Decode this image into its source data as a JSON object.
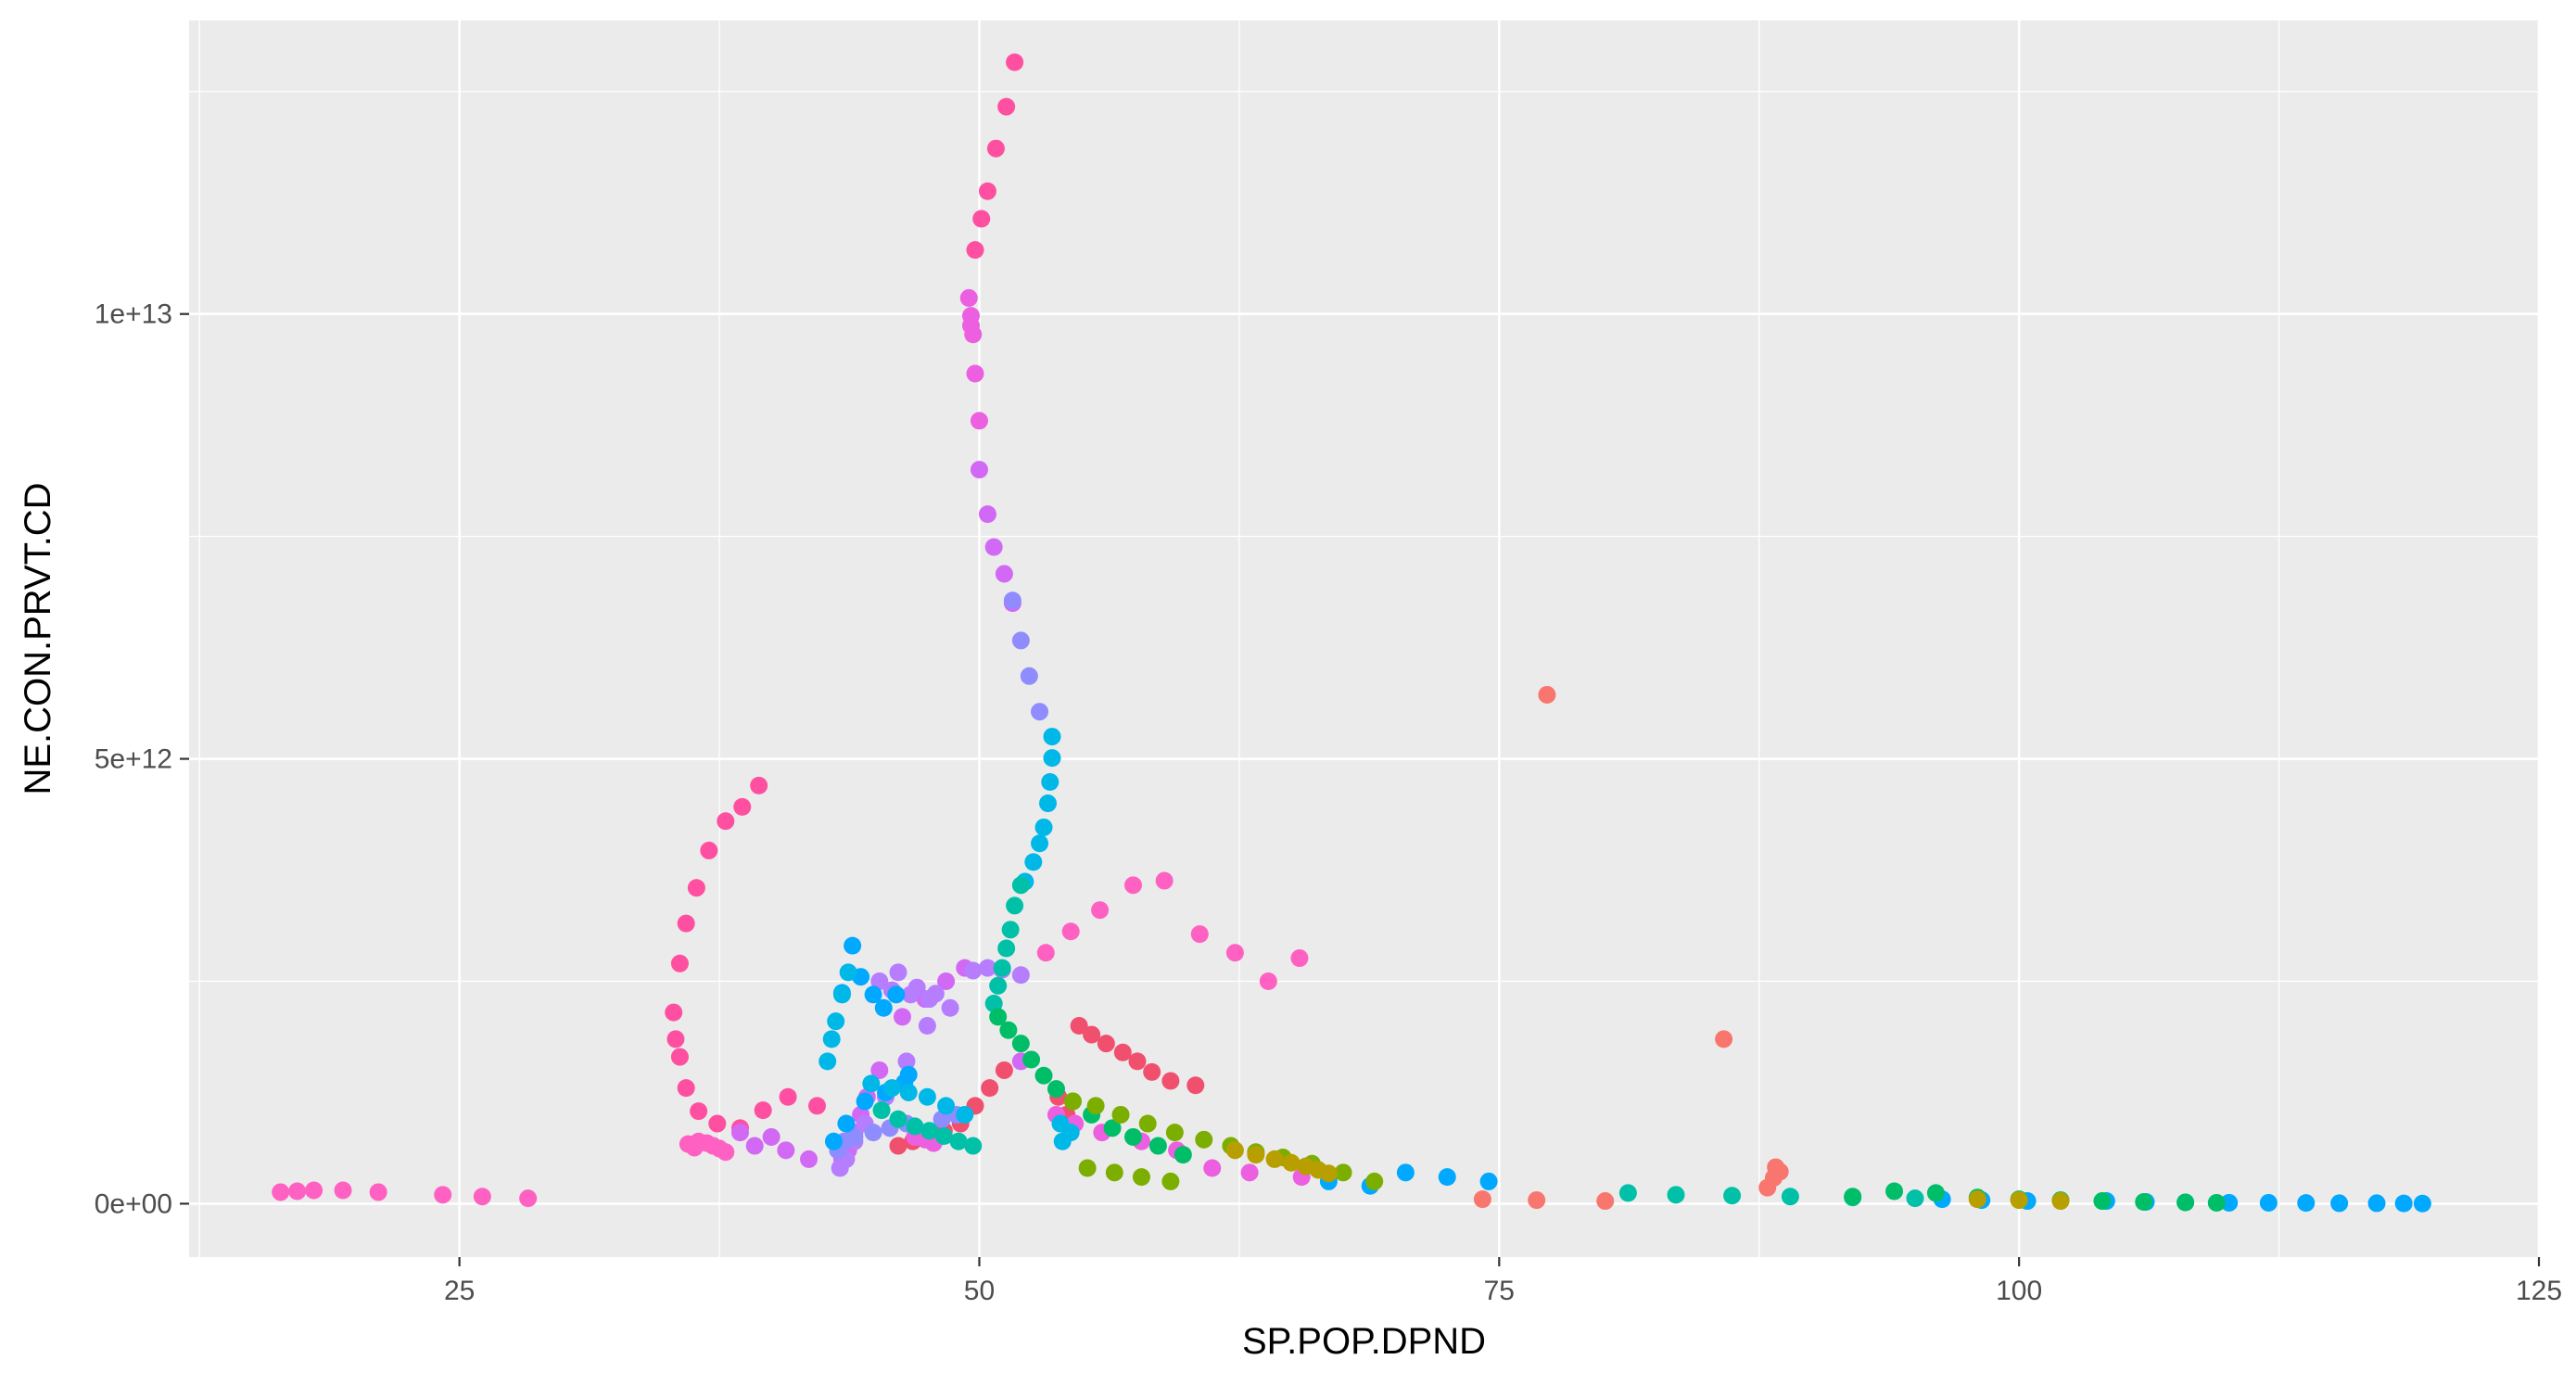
{
  "chart_data": {
    "type": "scatter",
    "title": "",
    "xlabel": "SP.POP.DPND",
    "ylabel": "NE.CON.PRVT.CD",
    "xlim": [
      12,
      125
    ],
    "ylim": [
      -600000000000.0,
      13300000000000.0
    ],
    "x_ticks": [
      25,
      50,
      75,
      100,
      125
    ],
    "x_tick_labels": [
      "25",
      "50",
      "75",
      "100",
      "125"
    ],
    "y_ticks": [
      0,
      5000000000000.0,
      10000000000000.0
    ],
    "y_tick_labels": [
      "0e+00",
      "5e+12",
      "1e+13"
    ],
    "grid": true,
    "legend": "none",
    "colors": [
      "#F8766D",
      "#F0506E",
      "#FF4FA0",
      "#FF61C3",
      "#EC5FE0",
      "#D269F5",
      "#B67DFF",
      "#8E8CFF",
      "#00A9FF",
      "#00B8E7",
      "#00C1A8",
      "#00BE67",
      "#7CAE00",
      "#B79F00"
    ],
    "series": [
      {
        "name": "",
        "color": "#F8766D",
        "x": [
          77.3,
          85.8,
          88.3,
          88.5,
          88.2,
          87.9,
          74.2,
          76.8,
          80.1
        ],
        "y": [
          5720000000000.0,
          1850000000000.0,
          410000000000.0,
          360000000000.0,
          290000000000.0,
          180000000000.0,
          50000000000.0,
          40000000000.0,
          30000000000.0
        ]
      },
      {
        "name": "",
        "color": "#F0506E",
        "x": [
          54.8,
          55.4,
          56.1,
          56.9,
          57.6,
          58.3,
          59.2,
          60.4,
          51.2,
          50.5,
          49.8,
          49.1,
          48.3,
          47.6,
          46.8,
          46.1,
          53.8,
          54.2
        ],
        "y": [
          2000000000000.0,
          1900000000000.0,
          1800000000000.0,
          1700000000000.0,
          1600000000000.0,
          1480000000000.0,
          1380000000000.0,
          1330000000000.0,
          1500000000000.0,
          1300000000000.0,
          1100000000000.0,
          900000000000.0,
          820000000000.0,
          750000000000.0,
          700000000000.0,
          650000000000.0,
          1200000000000.0,
          1000000000000.0
        ]
      },
      {
        "name": "",
        "color": "#FF4FA0",
        "x": [
          51.7,
          51.3,
          50.8,
          50.4,
          50.1,
          49.8,
          39.4,
          38.6,
          37.8,
          37.0,
          36.4,
          35.9,
          35.6,
          35.3,
          35.4,
          35.6,
          35.9,
          36.5,
          37.4,
          38.5,
          39.6,
          40.8,
          42.2
        ],
        "y": [
          12830000000000.0,
          12330000000000.0,
          11860000000000.0,
          11380000000000.0,
          11070000000000.0,
          10720000000000.0,
          4700000000000.0,
          4460000000000.0,
          4300000000000.0,
          3970000000000.0,
          3550000000000.0,
          3150000000000.0,
          2700000000000.0,
          2150000000000.0,
          1850000000000.0,
          1650000000000.0,
          1300000000000.0,
          1040000000000.0,
          900000000000.0,
          850000000000.0,
          1050000000000.0,
          1200000000000.0,
          1100000000000.0
        ]
      },
      {
        "name": "",
        "color": "#FF61C3",
        "x": [
          58.9,
          57.4,
          55.8,
          54.4,
          53.2,
          60.6,
          62.3,
          63.9,
          65.4,
          36.5,
          36.9,
          37.2,
          37.5,
          37.8,
          36.3,
          36.0,
          16.4,
          17.2,
          18.0,
          19.4,
          21.1,
          24.2,
          26.1,
          28.3
        ],
        "y": [
          3630000000000.0,
          3580000000000.0,
          3300000000000.0,
          3060000000000.0,
          2820000000000.0,
          3030000000000.0,
          2820000000000.0,
          2500000000000.0,
          2760000000000.0,
          700000000000.0,
          680000000000.0,
          650000000000.0,
          620000000000.0,
          580000000000.0,
          630000000000.0,
          670000000000.0,
          130000000000.0,
          140000000000.0,
          150000000000.0,
          150000000000.0,
          130000000000.0,
          100000000000.0,
          80000000000.0,
          60000000000.0
        ]
      },
      {
        "name": "",
        "color": "#EC5FE0",
        "x": [
          49.5,
          49.6,
          49.6,
          49.7,
          49.8,
          50.0,
          53.7,
          54.6,
          55.9,
          57.8,
          59.5,
          61.2,
          63.0,
          65.5,
          47.8,
          47.4,
          46.9
        ],
        "y": [
          10180000000000.0,
          9980000000000.0,
          9870000000000.0,
          9770000000000.0,
          9330000000000.0,
          8800000000000.0,
          1000000000000.0,
          900000000000.0,
          800000000000.0,
          700000000000.0,
          600000000000.0,
          400000000000.0,
          350000000000.0,
          300000000000.0,
          680000000000.0,
          720000000000.0,
          750000000000.0
        ]
      },
      {
        "name": "",
        "color": "#D269F5",
        "x": [
          50.0,
          50.4,
          50.7,
          51.2,
          51.6,
          52.0,
          49.3,
          48.4,
          47.4,
          46.3,
          45.2,
          44.6,
          44.3,
          44.0,
          43.7,
          43.4,
          38.5,
          40.0,
          39.2,
          40.7,
          41.8
        ],
        "y": [
          8250000000000.0,
          7750000000000.0,
          7380000000000.0,
          7080000000000.0,
          6750000000000.0,
          1600000000000.0,
          2650000000000.0,
          2500000000000.0,
          2300000000000.0,
          2100000000000.0,
          1500000000000.0,
          1200000000000.0,
          1000000000000.0,
          800000000000.0,
          600000000000.0,
          500000000000.0,
          800000000000.0,
          750000000000.0,
          650000000000.0,
          600000000000.0,
          500000000000.0
        ]
      },
      {
        "name": "",
        "color": "#B67DFF",
        "x": [
          52.0,
          51.1,
          50.4,
          49.7,
          47.9,
          47.0,
          46.1,
          45.2,
          48.6,
          47.5,
          46.5,
          45.5,
          44.5,
          44.0,
          43.6,
          43.3,
          45.8,
          46.7,
          47.6
        ],
        "y": [
          2570000000000.0,
          2630000000000.0,
          2650000000000.0,
          2620000000000.0,
          2360000000000.0,
          2430000000000.0,
          2600000000000.0,
          2500000000000.0,
          2200000000000.0,
          2000000000000.0,
          1600000000000.0,
          1200000000000.0,
          900000000000.0,
          700000000000.0,
          500000000000.0,
          400000000000.0,
          2400000000000.0,
          2350000000000.0,
          2300000000000.0
        ]
      },
      {
        "name": "",
        "color": "#8E8CFF",
        "x": [
          51.6,
          52.0,
          52.4,
          52.9,
          48.9,
          48.2,
          46.5,
          45.7,
          44.9,
          44.0,
          43.5,
          43.2
        ],
        "y": [
          6780000000000.0,
          6330000000000.0,
          5930000000000.0,
          5530000000000.0,
          1000000000000.0,
          950000000000.0,
          900000000000.0,
          850000000000.0,
          800000000000.0,
          750000000000.0,
          700000000000.0,
          600000000000.0
        ]
      },
      {
        "name": "",
        "color": "#00A9FF",
        "x": [
          43.9,
          43.4,
          44.3,
          44.9,
          45.4,
          46.0,
          46.6,
          46.4,
          45.5,
          44.5,
          43.6,
          43.0,
          70.5,
          72.5,
          74.5,
          66.8,
          68.8,
          104.2,
          106.1,
          108.0,
          110.1,
          112.0,
          113.8,
          115.4,
          117.2,
          118.5,
          119.4,
          96.3,
          98.2,
          100.4
        ],
        "y": [
          2900000000000.0,
          2370000000000.0,
          2550000000000.0,
          2350000000000.0,
          2200000000000.0,
          2350000000000.0,
          1450000000000.0,
          1360000000000.0,
          1250000000000.0,
          1150000000000.0,
          900000000000.0,
          700000000000.0,
          350000000000.0,
          300000000000.0,
          250000000000.0,
          250000000000.0,
          200000000000.0,
          30000000000.0,
          20000000000.0,
          15000000000.0,
          10000000000.0,
          10000000000.0,
          8000000000.0,
          5000000000.0,
          5000000000.0,
          3000000000.0,
          2000000000.0,
          50000000000.0,
          40000000000.0,
          30000000000.0
        ]
      },
      {
        "name": "",
        "color": "#00B8E7",
        "x": [
          53.5,
          53.5,
          53.4,
          53.3,
          53.1,
          52.9,
          52.6,
          52.2,
          43.7,
          43.4,
          43.1,
          42.9,
          42.7,
          44.8,
          45.8,
          46.6,
          47.5,
          48.4,
          49.3,
          53.9,
          54.4,
          54.0
        ],
        "y": [
          5250000000000.0,
          5010000000000.0,
          4740000000000.0,
          4500000000000.0,
          4230000000000.0,
          4050000000000.0,
          3840000000000.0,
          3620000000000.0,
          2600000000000.0,
          2350000000000.0,
          2050000000000.0,
          1850000000000.0,
          1600000000000.0,
          1350000000000.0,
          1300000000000.0,
          1250000000000.0,
          1200000000000.0,
          1100000000000.0,
          1000000000000.0,
          900000000000.0,
          800000000000.0,
          700000000000.0
        ]
      },
      {
        "name": "",
        "color": "#00C1A8",
        "x": [
          52.0,
          51.7,
          51.5,
          51.3,
          51.1,
          50.9,
          50.7,
          45.3,
          46.1,
          46.9,
          47.6,
          48.3,
          49.0,
          49.7,
          81.2,
          83.5,
          86.2,
          89.0,
          92.0,
          95.0
        ],
        "y": [
          3580000000000.0,
          3350000000000.0,
          3080000000000.0,
          2870000000000.0,
          2650000000000.0,
          2450000000000.0,
          2250000000000.0,
          1050000000000.0,
          950000000000.0,
          870000000000.0,
          820000000000.0,
          760000000000.0,
          700000000000.0,
          650000000000.0,
          120000000000.0,
          100000000000.0,
          90000000000.0,
          80000000000.0,
          70000000000.0,
          60000000000.0
        ]
      },
      {
        "name": "",
        "color": "#00BE67",
        "x": [
          50.9,
          51.4,
          52.0,
          52.5,
          53.1,
          53.7,
          54.5,
          55.4,
          56.4,
          57.4,
          58.6,
          59.8,
          92.0,
          94.0,
          96.0,
          98.0,
          100.0,
          102.0,
          104.0,
          106.0,
          108.0,
          109.5
        ],
        "y": [
          2100000000000.0,
          1950000000000.0,
          1800000000000.0,
          1620000000000.0,
          1440000000000.0,
          1290000000000.0,
          1150000000000.0,
          1000000000000.0,
          850000000000.0,
          750000000000.0,
          650000000000.0,
          550000000000.0,
          80000000000.0,
          140000000000.0,
          120000000000.0,
          70000000000.0,
          50000000000.0,
          40000000000.0,
          30000000000.0,
          20000000000.0,
          15000000000.0,
          10000000000.0
        ]
      },
      {
        "name": "",
        "color": "#7CAE00",
        "x": [
          54.5,
          55.6,
          56.8,
          58.1,
          59.4,
          60.8,
          62.1,
          63.3,
          64.6,
          66.0,
          67.5,
          69.0,
          55.2,
          56.5,
          57.8,
          59.2
        ],
        "y": [
          1150000000000.0,
          1100000000000.0,
          1000000000000.0,
          900000000000.0,
          800000000000.0,
          720000000000.0,
          650000000000.0,
          580000000000.0,
          520000000000.0,
          450000000000.0,
          350000000000.0,
          250000000000.0,
          400000000000.0,
          350000000000.0,
          300000000000.0,
          250000000000.0
        ]
      },
      {
        "name": "",
        "color": "#B79F00",
        "x": [
          62.3,
          63.3,
          64.2,
          65.0,
          65.7,
          66.3,
          66.8,
          98.0,
          100.0,
          102.0
        ],
        "y": [
          600000000000.0,
          550000000000.0,
          500000000000.0,
          460000000000.0,
          420000000000.0,
          380000000000.0,
          340000000000.0,
          50000000000.0,
          40000000000.0,
          30000000000.0
        ]
      }
    ]
  }
}
